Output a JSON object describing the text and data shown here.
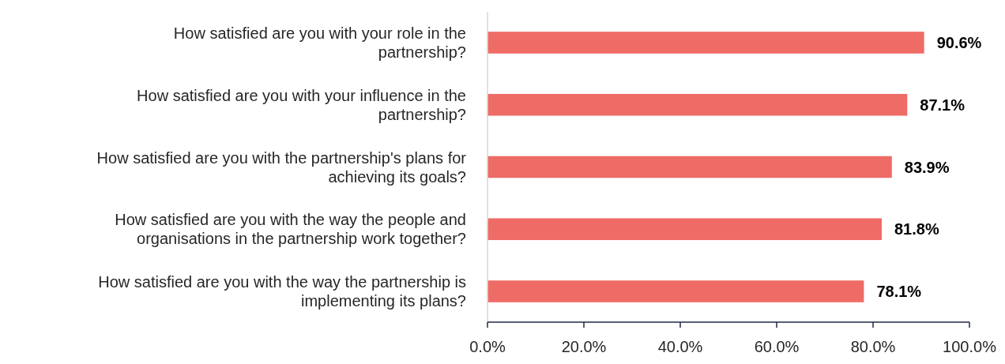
{
  "chart_data": {
    "type": "bar",
    "orientation": "horizontal",
    "categories": [
      "How satisfied are you with your role in the partnership?",
      "How satisfied are you with your influence in the partnership?",
      "How satisfied are you with the partnership's plans for achieving its goals?",
      "How satisfied are you with the way the people and organisations in the partnership work together?",
      "How satisfied are you with the way the partnership is implementing its plans?"
    ],
    "values": [
      90.6,
      87.1,
      83.9,
      81.8,
      78.1
    ],
    "value_labels": [
      "90.6%",
      "87.1%",
      "83.9%",
      "81.8%",
      "78.1%"
    ],
    "color": "#ee6b66",
    "xlim": [
      0,
      100
    ],
    "xticks": [
      {
        "value": 0,
        "label": "0.0%"
      },
      {
        "value": 20,
        "label": "20.0%"
      },
      {
        "value": 40,
        "label": "40.0%"
      },
      {
        "value": 60,
        "label": "60.0%"
      },
      {
        "value": 80,
        "label": "80.0%"
      },
      {
        "value": 100,
        "label": "100.0%"
      }
    ]
  }
}
